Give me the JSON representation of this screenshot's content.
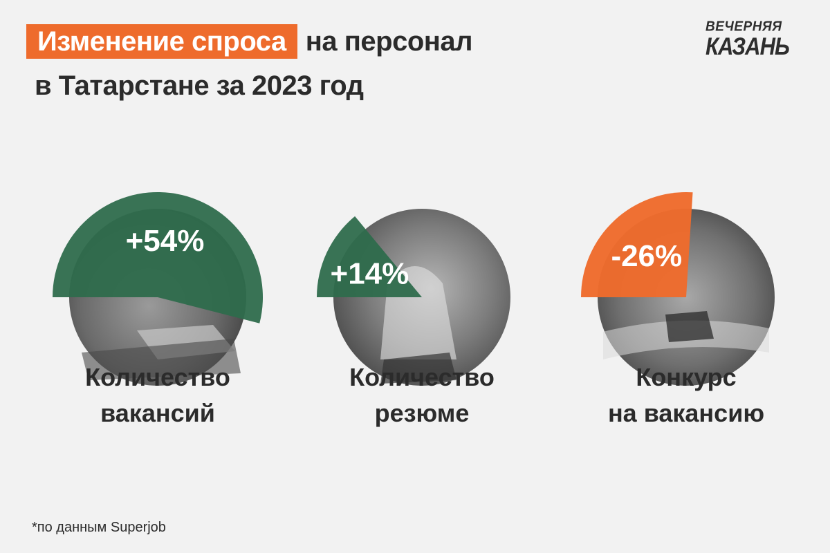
{
  "title": {
    "highlight": "Изменение спроса",
    "rest": "на персонал",
    "line2": "в Татарстане за 2023 год"
  },
  "logo": {
    "line1": "ВЕЧЕРНЯЯ",
    "line2": "КАЗАНЬ"
  },
  "colors": {
    "accent": "#ee6b2c",
    "positive": "#2e6b4c",
    "background": "#f2f2f2",
    "text": "#2b2b2b"
  },
  "chart_data": {
    "type": "pie",
    "series": [
      {
        "name": "Количество вакансий",
        "value": 54,
        "display": "+54%",
        "color": "#2e6b4c",
        "label_lines": [
          "Количество",
          "вакансий"
        ]
      },
      {
        "name": "Количество резюме",
        "value": 14,
        "display": "+14%",
        "color": "#2e6b4c",
        "label_lines": [
          "Количество",
          "резюме"
        ]
      },
      {
        "name": "Конкурс на вакансию",
        "value": -26,
        "display": "-26%",
        "color": "#ee6b2c",
        "label_lines": [
          "Конкурс",
          "на вакансию"
        ]
      }
    ]
  },
  "footnote": "*по данным Superjob"
}
